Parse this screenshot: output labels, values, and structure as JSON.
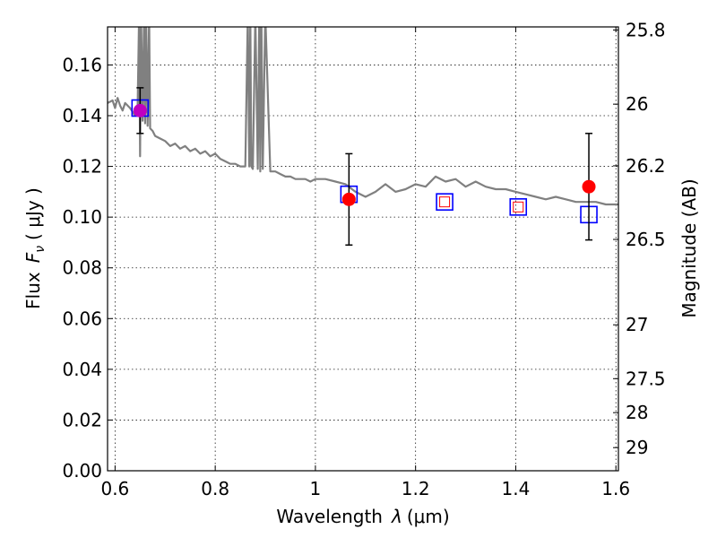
{
  "chart_data": {
    "type": "scatter",
    "xlabel": "Wavelength",
    "xlabel_symbol": "λ",
    "xlabel_unit": "(μm)",
    "ylabel": "Flux",
    "ylabel_symbol": "F",
    "ylabel_subscript": "ν",
    "ylabel_unit": "( μJy )",
    "ylabel_right": "Magnitude (AB)",
    "xlim": [
      0.585,
      1.605
    ],
    "ylim": [
      0.0,
      0.175
    ],
    "grid": true,
    "x_ticks": [
      0.6,
      0.8,
      1.0,
      1.2,
      1.4,
      1.6
    ],
    "x_tick_labels": [
      "0.6",
      "0.8",
      "1",
      "1.2",
      "1.4",
      "1.6"
    ],
    "y_ticks": [
      0.0,
      0.02,
      0.04,
      0.06,
      0.08,
      0.1,
      0.12,
      0.14,
      0.16
    ],
    "y_tick_labels": [
      "0.00",
      "0.02",
      "0.04",
      "0.06",
      "0.08",
      "0.10",
      "0.12",
      "0.14",
      "0.16"
    ],
    "right_ticks": [
      25.8,
      26,
      26.2,
      26.5,
      27,
      27.5,
      28,
      29
    ],
    "right_tick_labels": [
      "25.8",
      "26",
      "26.2",
      "26.5",
      "27",
      "27.5",
      "28",
      "29"
    ],
    "colors": {
      "model": "#808080",
      "observed": "#ff0000",
      "model_box": "#0000ff",
      "overlap": "#c000c0",
      "errorbar": "#000000"
    },
    "series": [
      {
        "type": "line",
        "x": [
          0.585,
          0.595,
          0.6,
          0.605,
          0.61,
          0.615,
          0.62,
          0.63,
          0.64,
          0.645,
          0.648,
          0.65,
          0.652,
          0.655,
          0.658,
          0.66,
          0.662,
          0.665,
          0.668,
          0.67,
          0.675,
          0.68,
          0.69,
          0.7,
          0.71,
          0.72,
          0.73,
          0.74,
          0.75,
          0.76,
          0.77,
          0.78,
          0.79,
          0.8,
          0.81,
          0.82,
          0.83,
          0.84,
          0.85,
          0.86,
          0.865,
          0.868,
          0.87,
          0.872,
          0.875,
          0.88,
          0.885,
          0.888,
          0.89,
          0.892,
          0.895,
          0.9,
          0.91,
          0.92,
          0.93,
          0.94,
          0.95,
          0.96,
          0.97,
          0.98,
          0.99,
          1.0,
          1.02,
          1.04,
          1.06,
          1.08,
          1.1,
          1.12,
          1.14,
          1.16,
          1.18,
          1.2,
          1.22,
          1.24,
          1.26,
          1.28,
          1.3,
          1.32,
          1.34,
          1.36,
          1.38,
          1.4,
          1.42,
          1.44,
          1.46,
          1.48,
          1.5,
          1.52,
          1.54,
          1.56,
          1.58,
          1.605
        ],
        "y": [
          0.145,
          0.146,
          0.143,
          0.147,
          0.144,
          0.142,
          0.145,
          0.143,
          0.14,
          0.142,
          0.18,
          0.124,
          0.18,
          0.138,
          0.18,
          0.137,
          0.18,
          0.136,
          0.18,
          0.135,
          0.134,
          0.132,
          0.131,
          0.13,
          0.128,
          0.129,
          0.127,
          0.128,
          0.126,
          0.127,
          0.125,
          0.126,
          0.124,
          0.125,
          0.123,
          0.122,
          0.121,
          0.121,
          0.12,
          0.12,
          0.18,
          0.12,
          0.18,
          0.12,
          0.119,
          0.18,
          0.119,
          0.18,
          0.118,
          0.18,
          0.119,
          0.18,
          0.118,
          0.118,
          0.117,
          0.116,
          0.116,
          0.115,
          0.115,
          0.115,
          0.114,
          0.115,
          0.115,
          0.114,
          0.113,
          0.11,
          0.108,
          0.11,
          0.113,
          0.11,
          0.111,
          0.113,
          0.112,
          0.116,
          0.114,
          0.115,
          0.112,
          0.114,
          0.112,
          0.111,
          0.111,
          0.11,
          0.109,
          0.108,
          0.107,
          0.108,
          0.107,
          0.106,
          0.106,
          0.106,
          0.105,
          0.105
        ]
      },
      {
        "type": "scatter",
        "marker": "circle",
        "x": [
          0.65,
          1.067,
          1.546
        ],
        "y": [
          0.142,
          0.107,
          0.112
        ],
        "y_err": [
          0.009,
          0.018,
          0.021
        ]
      },
      {
        "type": "scatter",
        "marker": "open-square",
        "x": [
          0.65,
          1.067,
          1.258,
          1.405,
          1.546
        ],
        "y": [
          0.143,
          0.109,
          0.106,
          0.104,
          0.101
        ]
      },
      {
        "type": "scatter",
        "marker": "small-open-square",
        "x": [
          1.258,
          1.405
        ],
        "y": [
          0.106,
          0.104
        ]
      }
    ]
  }
}
